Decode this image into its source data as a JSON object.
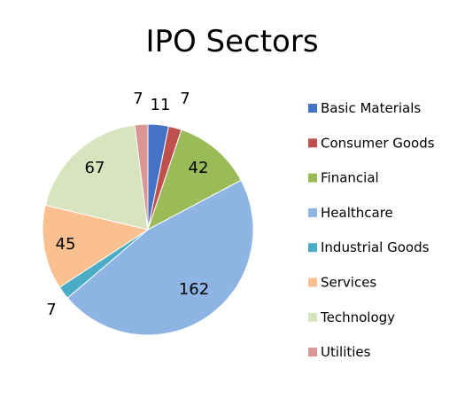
{
  "chart_data": {
    "type": "pie",
    "title": "IPO Sectors",
    "legend_position": "right",
    "categories": [
      "Basic Materials",
      "Consumer Goods",
      "Financial",
      "Healthcare",
      "Industrial Goods",
      "Services",
      "Technology",
      "Utilities"
    ],
    "values": [
      11,
      7,
      42,
      162,
      7,
      45,
      67,
      7
    ],
    "colors": [
      "#4472c4",
      "#c0504d",
      "#9bbb59",
      "#8db4e2",
      "#4bacc6",
      "#fac090",
      "#d7e4bd",
      "#d99694"
    ],
    "data_labels": [
      "11",
      "7",
      "42",
      "162",
      "7",
      "45",
      "67",
      "7"
    ]
  }
}
